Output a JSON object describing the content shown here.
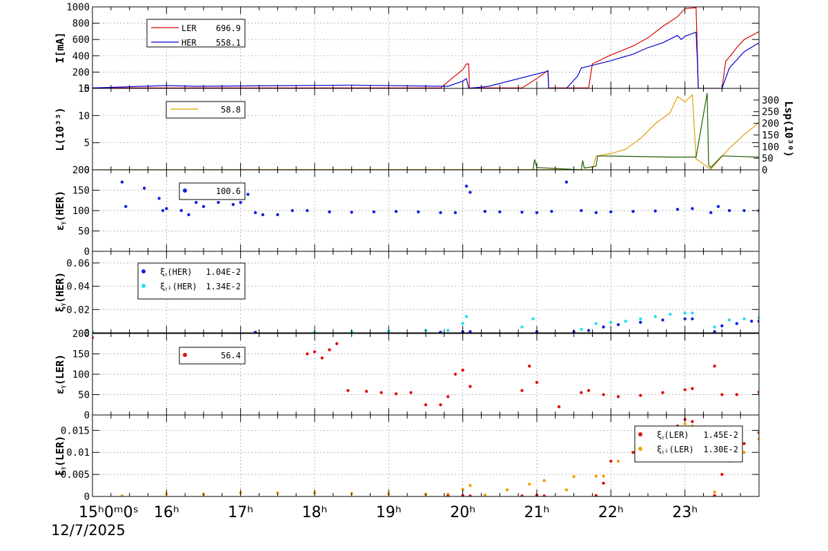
{
  "page": {
    "date": "12/7/2025"
  },
  "chart_data": {
    "type": "line",
    "x_axis": {
      "range": [
        15.0,
        24.0
      ],
      "unit": "hour",
      "ticks": [
        {
          "value": 15,
          "label": "15ʰ0ᵐ0ˢ"
        },
        {
          "value": 16,
          "label": "16ʰ"
        },
        {
          "value": 17,
          "label": "17ʰ"
        },
        {
          "value": 18,
          "label": "18ʰ"
        },
        {
          "value": 19,
          "label": "19ʰ"
        },
        {
          "value": 20,
          "label": "20ʰ"
        },
        {
          "value": 21,
          "label": "21ʰ"
        },
        {
          "value": 22,
          "label": "22ʰ"
        },
        {
          "value": 23,
          "label": "23ʰ"
        }
      ]
    },
    "panels": [
      {
        "id": "current",
        "ylabel": "I[mA]",
        "ylim": [
          0,
          1000
        ],
        "yticks": [
          0,
          200,
          400,
          600,
          800,
          1000
        ],
        "ytick_labels": [
          "0",
          "200",
          "400",
          "600",
          "800",
          "1000"
        ],
        "legend": [
          {
            "name": "LER",
            "value": "696.9",
            "color": "#d40000",
            "marker": "line"
          },
          {
            "name": "HER",
            "value": "558.1",
            "color": "#0000d4",
            "marker": "line"
          }
        ],
        "series": [
          {
            "name": "LER",
            "style": "line",
            "color": "#d40000",
            "x": [
              15.0,
              19.7,
              19.85,
              20.0,
              20.05,
              20.08,
              20.09,
              20.8,
              21.0,
              21.15,
              21.16,
              21.7,
              21.75,
              22.0,
              22.3,
              22.5,
              22.7,
              22.9,
              23.0,
              23.15,
              23.17,
              23.18,
              23.5,
              23.55,
              23.7,
              23.8,
              24.0
            ],
            "y": [
              5,
              5,
              120,
              230,
              300,
              300,
              5,
              5,
              120,
              220,
              5,
              5,
              300,
              410,
              520,
              620,
              760,
              880,
              980,
              990,
              380,
              0,
              0,
              330,
              500,
              600,
              697
            ]
          },
          {
            "name": "HER",
            "style": "line",
            "color": "#0000d4",
            "x": [
              15.0,
              16.0,
              16.4,
              18.5,
              19.8,
              20.0,
              20.05,
              20.08,
              20.35,
              21.1,
              21.15,
              21.16,
              21.4,
              21.55,
              21.6,
              22.0,
              22.3,
              22.5,
              22.7,
              22.9,
              22.95,
              23.0,
              23.15,
              23.17,
              23.18,
              23.5,
              23.6,
              23.8,
              24.0
            ],
            "y": [
              5,
              35,
              25,
              40,
              25,
              90,
              120,
              0,
              25,
              200,
              210,
              0,
              0,
              150,
              250,
              340,
              420,
              500,
              560,
              650,
              600,
              640,
              690,
              300,
              0,
              0,
              250,
              450,
              558
            ]
          }
        ]
      },
      {
        "id": "luminosity",
        "ylabel": "L(10³³)",
        "ylim": [
          0,
          15
        ],
        "yticks": [
          0,
          5,
          10,
          15
        ],
        "ytick_labels": [
          "0",
          "5",
          "10",
          "15"
        ],
        "y2label": "Lsp(10³⁰)",
        "y2lim": [
          0,
          350
        ],
        "y2ticks": [
          0,
          50,
          100,
          150,
          200,
          250,
          300
        ],
        "y2tick_labels": [
          "0",
          "50",
          "100",
          "150",
          "200",
          "250",
          "300"
        ],
        "legend": [
          {
            "name": "",
            "value": "58.8",
            "color": "#e0a000",
            "marker": "line"
          }
        ],
        "series": [
          {
            "name": "L",
            "style": "line",
            "color": "#e0a000",
            "x": [
              15.0,
              17.2,
              21.75,
              21.8,
              22.0,
              22.2,
              22.4,
              22.6,
              22.8,
              22.9,
              23.0,
              23.1,
              23.15,
              23.35,
              23.5,
              23.6,
              23.8,
              24.0
            ],
            "y": [
              0,
              0.05,
              0.05,
              2.5,
              3.0,
              3.8,
              5.8,
              8.5,
              10.5,
              13.5,
              12.5,
              13.8,
              2.0,
              0.1,
              2.5,
              4.0,
              6.5,
              8.7
            ]
          },
          {
            "name": "Lsp",
            "style": "line",
            "color": "#1a5c00",
            "axis": "y2",
            "x": [
              15.0,
              20.95,
              20.97,
              21.0,
              21.6,
              21.62,
              21.64,
              21.8,
              21.82,
              22.2,
              22.8,
              23.15,
              23.3,
              23.32,
              23.35,
              23.5,
              24.0
            ],
            "y": [
              0,
              0,
              45,
              10,
              0,
              40,
              8,
              15,
              60,
              58,
              55,
              55,
              330,
              20,
              10,
              60,
              55
            ]
          }
        ]
      },
      {
        "id": "emit_y_her",
        "ylabel": "εᵧ(HER)",
        "ylim": [
          0,
          200
        ],
        "yticks": [
          0,
          50,
          100,
          150,
          200
        ],
        "ytick_labels": [
          "0",
          "50",
          "100",
          "150",
          "200"
        ],
        "legend": [
          {
            "name": "",
            "value": "100.6",
            "color": "#1020e0",
            "marker": "dot"
          }
        ],
        "series": [
          {
            "name": "emit_y_HER",
            "style": "scatter",
            "color": "#1020e0",
            "x": [
              15.4,
              15.45,
              15.7,
              15.9,
              15.95,
              16.0,
              16.2,
              16.3,
              16.4,
              16.5,
              16.7,
              16.9,
              17.0,
              17.1,
              17.2,
              17.3,
              17.5,
              17.7,
              17.9,
              18.2,
              18.5,
              18.8,
              19.1,
              19.4,
              19.7,
              19.9,
              20.05,
              20.1,
              20.3,
              20.5,
              20.8,
              21.0,
              21.2,
              21.4,
              21.6,
              21.8,
              22.0,
              22.3,
              22.6,
              22.9,
              23.1,
              23.35,
              23.45,
              23.6,
              23.8,
              24.0
            ],
            "y": [
              170,
              110,
              155,
              130,
              100,
              105,
              100,
              90,
              120,
              110,
              120,
              115,
              120,
              140,
              95,
              90,
              90,
              100,
              100,
              97,
              96,
              97,
              98,
              97,
              95,
              95,
              160,
              145,
              98,
              97,
              96,
              95,
              98,
              170,
              100,
              95,
              97,
              98,
              99,
              103,
              105,
              95,
              110,
              100,
              100,
              100
            ]
          }
        ]
      },
      {
        "id": "xi_y_her",
        "ylabel": "ξᵧ(HER)",
        "ylim": [
          0,
          0.07
        ],
        "yticks": [
          0,
          0.02,
          0.04,
          0.06
        ],
        "ytick_labels": [
          "0",
          "0.02",
          "0.04",
          "0.06"
        ],
        "legend": [
          {
            "name": "ξᵧ(HER)",
            "value": "1.04E-2",
            "color": "#1020e0",
            "marker": "dot"
          },
          {
            "name": "ξᵧᵢ(HER)",
            "value": "1.34E-2",
            "color": "#20e0f0",
            "marker": "dot"
          }
        ],
        "series": [
          {
            "name": "xi_y_HER",
            "style": "scatter",
            "color": "#1020e0",
            "x": [
              15.0,
              17.2,
              19.7,
              20.0,
              20.1,
              21.0,
              21.5,
              21.7,
              21.9,
              22.1,
              22.4,
              22.7,
              23.0,
              23.1,
              23.4,
              23.5,
              23.7,
              23.9,
              24.0
            ],
            "y": [
              0.0005,
              0.0005,
              0.0005,
              0.001,
              0.001,
              0.001,
              0.001,
              0.002,
              0.005,
              0.007,
              0.009,
              0.011,
              0.012,
              0.012,
              0.001,
              0.006,
              0.008,
              0.01,
              0.01
            ]
          },
          {
            "name": "xi_yi_HER",
            "style": "scatter",
            "color": "#20e0f0",
            "x": [
              15.0,
              18.0,
              18.5,
              19.0,
              19.5,
              19.8,
              20.0,
              20.05,
              20.8,
              20.95,
              21.6,
              21.8,
              22.0,
              22.2,
              22.4,
              22.6,
              22.8,
              23.0,
              23.1,
              23.4,
              23.6,
              23.8,
              24.0
            ],
            "y": [
              0.0005,
              0.0005,
              0.001,
              0.0015,
              0.002,
              0.002,
              0.008,
              0.014,
              0.005,
              0.012,
              0.003,
              0.008,
              0.009,
              0.01,
              0.012,
              0.014,
              0.016,
              0.017,
              0.017,
              0.005,
              0.011,
              0.012,
              0.013
            ]
          }
        ]
      },
      {
        "id": "emit_y_ler",
        "ylabel": "εᵧ(LER)",
        "ylim": [
          0,
          200
        ],
        "yticks": [
          0,
          50,
          100,
          150,
          200
        ],
        "ytick_labels": [
          "0",
          "50",
          "100",
          "150",
          "200"
        ],
        "legend": [
          {
            "name": "",
            "value": "56.4",
            "color": "#e01010",
            "marker": "dot"
          }
        ],
        "series": [
          {
            "name": "emit_y_LER",
            "style": "scatter",
            "color": "#e01010",
            "x": [
              15.0,
              17.9,
              18.0,
              18.1,
              18.2,
              18.3,
              18.45,
              18.7,
              18.9,
              19.1,
              19.3,
              19.5,
              19.7,
              19.8,
              19.9,
              20.0,
              20.1,
              20.8,
              20.9,
              21.0,
              21.3,
              21.6,
              21.7,
              21.9,
              22.1,
              22.4,
              22.7,
              23.0,
              23.1,
              23.4,
              23.5,
              23.7,
              24.0
            ],
            "y": [
              190,
              150,
              155,
              140,
              160,
              175,
              60,
              58,
              55,
              52,
              55,
              25,
              25,
              45,
              100,
              110,
              70,
              60,
              120,
              80,
              20,
              55,
              60,
              50,
              45,
              48,
              55,
              62,
              65,
              120,
              50,
              50,
              56
            ]
          }
        ]
      },
      {
        "id": "xi_y_ler",
        "ylabel": "ξᵧ(LER)",
        "ylim": [
          0,
          0.0185
        ],
        "yticks": [
          0,
          0.005,
          0.01,
          0.015
        ],
        "ytick_labels": [
          "0",
          "0.005",
          "0.01",
          "0.015"
        ],
        "legend": [
          {
            "name": "ξᵧ(LER)",
            "value": "1.45E-2",
            "color": "#e01010",
            "marker": "dot"
          },
          {
            "name": "ξᵧᵢ(LER)",
            "value": "1.30E-2",
            "color": "#f5a000",
            "marker": "dot"
          }
        ],
        "series": [
          {
            "name": "xi_yi_LER",
            "style": "scatter",
            "color": "#f5a000",
            "x": [
              15.4,
              16.0,
              16.5,
              17.0,
              17.5,
              18.0,
              18.5,
              19.0,
              19.5,
              19.8,
              20.0,
              20.1,
              20.3,
              20.6,
              20.9,
              21.1,
              21.4,
              21.5,
              21.8,
              21.9,
              22.1,
              22.3,
              22.6,
              22.9,
              23.0,
              23.1,
              23.4,
              23.6,
              23.8,
              24.0
            ],
            "y": [
              0.0001,
              0.0006,
              0.0005,
              0.0008,
              0.0008,
              0.0008,
              0.0007,
              0.0006,
              0.0005,
              0.0005,
              0.0016,
              0.0025,
              0.0003,
              0.0015,
              0.0028,
              0.0036,
              0.0015,
              0.0045,
              0.0046,
              0.0046,
              0.008,
              0.01,
              0.013,
              0.015,
              0.0165,
              0.016,
              0.001,
              0.008,
              0.01,
              0.013
            ]
          },
          {
            "name": "xi_y_LER",
            "style": "scatter",
            "color": "#e01010",
            "x": [
              19.8,
              20.0,
              20.1,
              20.8,
              21.0,
              21.1,
              21.8,
              21.9,
              22.0,
              22.3,
              22.6,
              22.9,
              23.0,
              23.1,
              23.4,
              23.5,
              23.6,
              23.8,
              24.0
            ],
            "y": [
              0.0001,
              0.0002,
              0.0001,
              0.0001,
              0.0003,
              0.0001,
              0.0002,
              0.003,
              0.008,
              0.01,
              0.013,
              0.016,
              0.0175,
              0.017,
              0.0002,
              0.005,
              0.01,
              0.012,
              0.0145
            ]
          }
        ]
      }
    ]
  }
}
